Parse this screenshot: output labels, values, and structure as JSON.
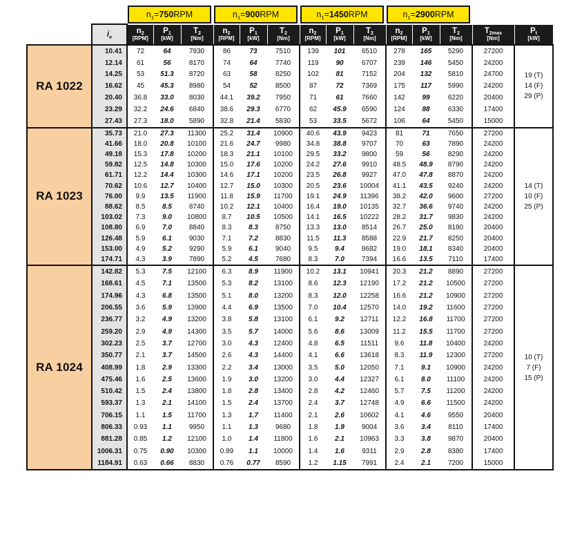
{
  "colors": {
    "accent_yellow": "#FFE400",
    "header_black": "#1B1B1B",
    "model_peach": "#F8CFA0",
    "ratio_gray": "#E4E4E4",
    "border": "#111111"
  },
  "rpm_headers": [
    {
      "sym": "n",
      "sub": "1",
      "eq": "= ",
      "value": "750",
      "unit": " RPM"
    },
    {
      "sym": "n",
      "sub": "1",
      "eq": "= ",
      "value": "900",
      "unit": " RPM"
    },
    {
      "sym": "n",
      "sub": "1",
      "eq": "= ",
      "value": "1450",
      "unit": " RPM"
    },
    {
      "sym": "n",
      "sub": "1",
      "eq": "= ",
      "value": "2900",
      "unit": " RPM"
    }
  ],
  "col_headers": {
    "ie": {
      "sym": "i",
      "sub": "e"
    },
    "group_cols": [
      {
        "sym": "n",
        "sub": "2",
        "unit": "[RPM]"
      },
      {
        "sym": "P",
        "sub": "1",
        "unit": "[kW]"
      },
      {
        "sym": "T",
        "sub": "2",
        "unit": "[Nm]"
      }
    ],
    "t2max": {
      "sym": "T",
      "sub": "2max",
      "unit": "[Nm]"
    },
    "pt": {
      "sym": "P",
      "sub": "t",
      "unit": "[kW]"
    }
  },
  "chart_data": {
    "type": "table",
    "title": "Gear reducer ratings at n1 = 750 / 900 / 1450 / 2900 RPM",
    "columns_per_group": [
      "n2 [RPM]",
      "P1 [kW]",
      "T2 [Nm]"
    ],
    "extra_columns": [
      "T2max [Nm]",
      "Pt [kW]"
    ]
  },
  "sections": [
    {
      "model": "RA 1022",
      "pt": [
        "19 (T)",
        "14 (F)",
        "29 (P)"
      ],
      "rows": [
        {
          "ie": "10.41",
          "v": [
            "72",
            "64",
            "7930",
            "86",
            "73",
            "7510",
            "139",
            "101",
            "6510",
            "278",
            "165",
            "5290"
          ],
          "t2max": "27200"
        },
        {
          "ie": "12.14",
          "v": [
            "61",
            "56",
            "8170",
            "74",
            "64",
            "7740",
            "119",
            "90",
            "6707",
            "239",
            "146",
            "5450"
          ],
          "t2max": "24200"
        },
        {
          "ie": "14.25",
          "v": [
            "53",
            "51.3",
            "8720",
            "63",
            "58",
            "8250",
            "102",
            "81",
            "7152",
            "204",
            "132",
            "5810"
          ],
          "t2max": "24700"
        },
        {
          "ie": "16.62",
          "v": [
            "45",
            "45.3",
            "8980",
            "54",
            "52",
            "8500",
            "87",
            "72",
            "7369",
            "175",
            "117",
            "5990"
          ],
          "t2max": "24200"
        },
        {
          "ie": "20.40",
          "v": [
            "36.8",
            "33.0",
            "8030",
            "44.1",
            "39.2",
            "7950",
            "71",
            "61",
            "7660",
            "142",
            "99",
            "6220"
          ],
          "t2max": "20400"
        },
        {
          "ie": "23.29",
          "v": [
            "32.2",
            "24.6",
            "6840",
            "38.6",
            "29.3",
            "6770",
            "62",
            "45.9",
            "6590",
            "124",
            "88",
            "6330"
          ],
          "t2max": "17400"
        },
        {
          "ie": "27.43",
          "v": [
            "27.3",
            "18.0",
            "5890",
            "32.8",
            "21.4",
            "5830",
            "53",
            "33.5",
            "5672",
            "106",
            "64",
            "5450"
          ],
          "t2max": "15000"
        }
      ]
    },
    {
      "model": "RA 1023",
      "pt": [
        "14 (T)",
        "10 (F)",
        "25 (P)"
      ],
      "rows": [
        {
          "ie": "35.73",
          "v": [
            "21.0",
            "27.3",
            "11300",
            "25.2",
            "31.4",
            "10900",
            "40.6",
            "43.9",
            "9423",
            "81",
            "71",
            "7650"
          ],
          "t2max": "27200"
        },
        {
          "ie": "41.66",
          "v": [
            "18.0",
            "20.8",
            "10100",
            "21.6",
            "24.7",
            "9980",
            "34.8",
            "38.8",
            "9707",
            "70",
            "63",
            "7890"
          ],
          "t2max": "24200"
        },
        {
          "ie": "49.18",
          "v": [
            "15.3",
            "17.8",
            "10200",
            "18.3",
            "21.1",
            "10100",
            "29.5",
            "33.2",
            "9800",
            "59",
            "56",
            "8290"
          ],
          "t2max": "24200"
        },
        {
          "ie": "59.82",
          "v": [
            "12.5",
            "14.8",
            "10300",
            "15.0",
            "17.6",
            "10200",
            "24.2",
            "27.6",
            "9910",
            "48.5",
            "48.9",
            "8790"
          ],
          "t2max": "24200"
        },
        {
          "ie": "61.71",
          "v": [
            "12.2",
            "14.4",
            "10300",
            "14.6",
            "17.1",
            "10200",
            "23.5",
            "26.8",
            "9927",
            "47.0",
            "47.8",
            "8870"
          ],
          "t2max": "24200"
        },
        {
          "ie": "70.62",
          "v": [
            "10.6",
            "12.7",
            "10400",
            "12.7",
            "15.0",
            "10300",
            "20.5",
            "23.6",
            "10004",
            "41.1",
            "43.5",
            "9240"
          ],
          "t2max": "24200"
        },
        {
          "ie": "76.00",
          "v": [
            "9.9",
            "13.5",
            "11900",
            "11.8",
            "15.9",
            "11700",
            "19.1",
            "24.9",
            "11396",
            "38.2",
            "42.0",
            "9600"
          ],
          "t2max": "27200"
        },
        {
          "ie": "88.62",
          "v": [
            "8.5",
            "8.5",
            "8740",
            "10.2",
            "12.1",
            "10400",
            "16.4",
            "19.0",
            "10135",
            "32.7",
            "36.6",
            "9740"
          ],
          "t2max": "24200"
        },
        {
          "ie": "103.02",
          "v": [
            "7.3",
            "9.0",
            "10800",
            "8.7",
            "10.5",
            "10500",
            "14.1",
            "16.5",
            "10222",
            "28.2",
            "31.7",
            "9830"
          ],
          "t2max": "24200"
        },
        {
          "ie": "108.80",
          "v": [
            "6.9",
            "7.0",
            "8840",
            "8.3",
            "8.3",
            "8750",
            "13.3",
            "13.0",
            "8514",
            "26.7",
            "25.0",
            "8180"
          ],
          "t2max": "20400"
        },
        {
          "ie": "126.48",
          "v": [
            "5.9",
            "6.1",
            "9030",
            "7.1",
            "7.2",
            "8830",
            "11.5",
            "11.3",
            "8588",
            "22.9",
            "21.7",
            "8250"
          ],
          "t2max": "20400"
        },
        {
          "ie": "153.00",
          "v": [
            "4.9",
            "5.2",
            "9290",
            "5.9",
            "6.1",
            "9040",
            "9.5",
            "9.4",
            "8682",
            "19.0",
            "18.1",
            "8340"
          ],
          "t2max": "20400"
        },
        {
          "ie": "174.71",
          "v": [
            "4.3",
            "3.9",
            "7890",
            "5.2",
            "4.5",
            "7680",
            "8.3",
            "7.0",
            "7394",
            "16.6",
            "13.5",
            "7110"
          ],
          "t2max": "17400"
        }
      ]
    },
    {
      "model": "RA 1024",
      "pt": [
        "10 (T)",
        "7 (F)",
        "15 (P)"
      ],
      "rows": [
        {
          "ie": "142.82",
          "v": [
            "5.3",
            "7.5",
            "12100",
            "6.3",
            "8.9",
            "11900",
            "10.2",
            "13.1",
            "10941",
            "20.3",
            "21.2",
            "8890"
          ],
          "t2max": "27200"
        },
        {
          "ie": "168.61",
          "v": [
            "4.5",
            "7.1",
            "13500",
            "5.3",
            "8.2",
            "13100",
            "8.6",
            "12.3",
            "12190",
            "17.2",
            "21.2",
            "10500"
          ],
          "t2max": "27200"
        },
        {
          "ie": "174.96",
          "v": [
            "4.3",
            "6.8",
            "13500",
            "5.1",
            "8.0",
            "13200",
            "8.3",
            "12.0",
            "12258",
            "16.6",
            "21.2",
            "10900"
          ],
          "t2max": "27200"
        },
        {
          "ie": "206.55",
          "v": [
            "3.6",
            "5.9",
            "13900",
            "4.4",
            "6.9",
            "13500",
            "7.0",
            "10.4",
            "12570",
            "14.0",
            "19.2",
            "11600"
          ],
          "t2max": "27200"
        },
        {
          "ie": "236.77",
          "v": [
            "3.2",
            "4.9",
            "13200",
            "3.8",
            "5.8",
            "13100",
            "6.1",
            "9.2",
            "12711",
            "12.2",
            "16.8",
            "11700"
          ],
          "t2max": "27200"
        },
        {
          "ie": "259.20",
          "v": [
            "2.9",
            "4.9",
            "14300",
            "3.5",
            "5.7",
            "14000",
            "5.6",
            "8.6",
            "13009",
            "11.2",
            "15.5",
            "11700"
          ],
          "t2max": "27200"
        },
        {
          "ie": "302.23",
          "v": [
            "2.5",
            "3.7",
            "12700",
            "3.0",
            "4.3",
            "12400",
            "4.8",
            "6.5",
            "11511",
            "9.6",
            "11.8",
            "10400"
          ],
          "t2max": "24200"
        },
        {
          "ie": "350.77",
          "v": [
            "2.1",
            "3.7",
            "14500",
            "2.6",
            "4.3",
            "14400",
            "4.1",
            "6.6",
            "13618",
            "8.3",
            "11.9",
            "12300"
          ],
          "t2max": "27200"
        },
        {
          "ie": "408.99",
          "v": [
            "1.8",
            "2.9",
            "13300",
            "2.2",
            "3.4",
            "13000",
            "3.5",
            "5.0",
            "12050",
            "7.1",
            "9.1",
            "10900"
          ],
          "t2max": "24200"
        },
        {
          "ie": "475.46",
          "v": [
            "1.6",
            "2.5",
            "13600",
            "1.9",
            "3.0",
            "13200",
            "3.0",
            "4.4",
            "12327",
            "6.1",
            "8.0",
            "11100"
          ],
          "t2max": "24200"
        },
        {
          "ie": "510.42",
          "v": [
            "1.5",
            "2.4",
            "13800",
            "1.8",
            "2.8",
            "13400",
            "2.8",
            "4.2",
            "12460",
            "5.7",
            "7.5",
            "11200"
          ],
          "t2max": "24200"
        },
        {
          "ie": "593.37",
          "v": [
            "1.3",
            "2.1",
            "14100",
            "1.5",
            "2.4",
            "13700",
            "2.4",
            "3.7",
            "12748",
            "4.9",
            "6.6",
            "11500"
          ],
          "t2max": "24200"
        },
        {
          "ie": "706.15",
          "v": [
            "1.1",
            "1.5",
            "11700",
            "1.3",
            "1.7",
            "11400",
            "2.1",
            "2.6",
            "10602",
            "4.1",
            "4.6",
            "9550"
          ],
          "t2max": "20400"
        },
        {
          "ie": "806.33",
          "v": [
            "0.93",
            "1.1",
            "9950",
            "1.1",
            "1.3",
            "9680",
            "1.8",
            "1.9",
            "9004",
            "3.6",
            "3.4",
            "8110"
          ],
          "t2max": "17400"
        },
        {
          "ie": "881.28",
          "v": [
            "0.85",
            "1.2",
            "12100",
            "1.0",
            "1.4",
            "11800",
            "1.6",
            "2.1",
            "10963",
            "3.3",
            "3.8",
            "9870"
          ],
          "t2max": "20400"
        },
        {
          "ie": "1006.31",
          "v": [
            "0.75",
            "0.90",
            "10300",
            "0.89",
            "1.1",
            "10000",
            "1.4",
            "1.6",
            "9311",
            "2.9",
            "2.8",
            "8380"
          ],
          "t2max": "17400"
        },
        {
          "ie": "1184.91",
          "v": [
            "0.63",
            "0.66",
            "8830",
            "0.76",
            "0.77",
            "8590",
            "1.2",
            "1.15",
            "7991",
            "2.4",
            "2.1",
            "7200"
          ],
          "t2max": "15000"
        }
      ]
    }
  ]
}
